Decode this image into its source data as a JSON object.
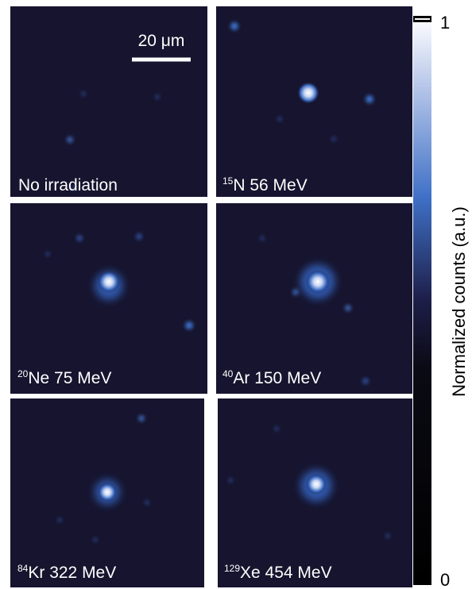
{
  "scale_bar": "20 μm",
  "panels": [
    {
      "label": "No irradiation"
    },
    {
      "isotope_mass": "15",
      "label": "N 56 MeV"
    },
    {
      "isotope_mass": "20",
      "label": "Ne 75 MeV"
    },
    {
      "isotope_mass": "40",
      "label": "Ar 150 MeV"
    },
    {
      "isotope_mass": "84",
      "label": "Kr 322 MeV"
    },
    {
      "isotope_mass": "129",
      "label": "Xe 454 MeV"
    }
  ],
  "colorbar": {
    "title": "Normalized counts (a.u.)",
    "max_label": "1",
    "min_label": "0"
  }
}
